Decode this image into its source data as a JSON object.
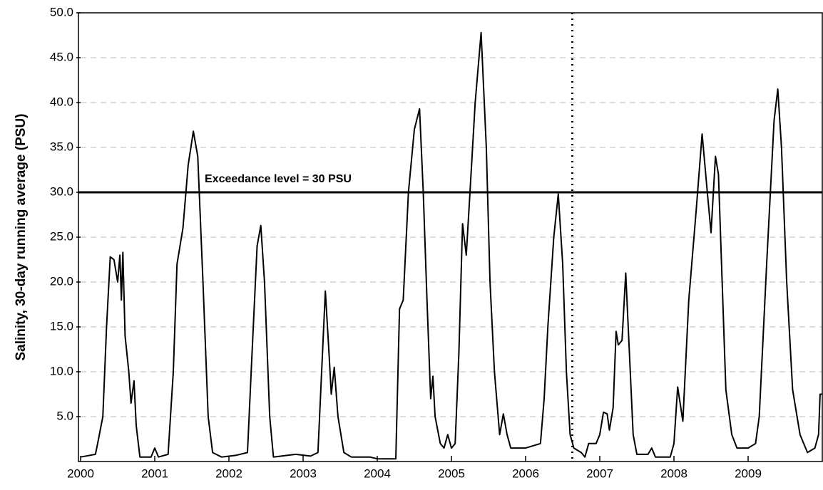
{
  "chart_data": {
    "type": "line",
    "y_label": "Salinity, 30-day running average (PSU)",
    "annotation": "Exceedance level = 30 PSU",
    "hline": 30,
    "vline": 2006.63,
    "color": "#000000",
    "grid": true,
    "xlim": [
      2000,
      2010
    ],
    "xticks": [
      2000,
      2001,
      2002,
      2003,
      2004,
      2005,
      2006,
      2007,
      2008,
      2009
    ],
    "ylim": [
      0,
      50
    ],
    "yticks": [
      {
        "value": 5,
        "label": "5.0"
      },
      {
        "value": 10,
        "label": "10.0"
      },
      {
        "value": 15,
        "label": "15.0"
      },
      {
        "value": 20,
        "label": "20.0"
      },
      {
        "value": 25,
        "label": "25.0"
      },
      {
        "value": 30,
        "label": "30.0"
      },
      {
        "value": 35,
        "label": "35.0"
      },
      {
        "value": 40,
        "label": "40.0"
      },
      {
        "value": 45,
        "label": "45.0"
      },
      {
        "value": 50,
        "label": "50.0"
      }
    ],
    "x": [
      2000.0,
      2000.2,
      2000.23,
      2000.3,
      2000.35,
      2000.4,
      2000.45,
      2000.5,
      2000.53,
      2000.55,
      2000.57,
      2000.6,
      2000.65,
      2000.68,
      2000.72,
      2000.75,
      2000.8,
      2000.95,
      2001.0,
      2001.05,
      2001.18,
      2001.25,
      2001.3,
      2001.38,
      2001.45,
      2001.52,
      2001.58,
      2001.65,
      2001.72,
      2001.78,
      2001.9,
      2002.1,
      2002.25,
      2002.3,
      2002.38,
      2002.43,
      2002.48,
      2002.55,
      2002.6,
      2002.9,
      2003.1,
      2003.2,
      2003.25,
      2003.3,
      2003.35,
      2003.38,
      2003.42,
      2003.47,
      2003.55,
      2003.65,
      2003.9,
      2004.0,
      2004.25,
      2004.3,
      2004.35,
      2004.42,
      2004.5,
      2004.57,
      2004.62,
      2004.67,
      2004.72,
      2004.75,
      2004.78,
      2004.85,
      2004.9,
      2004.95,
      2005.0,
      2005.05,
      2005.1,
      2005.15,
      2005.2,
      2005.25,
      2005.32,
      2005.4,
      2005.47,
      2005.52,
      2005.58,
      2005.65,
      2005.7,
      2005.75,
      2005.8,
      2006.0,
      2006.2,
      2006.25,
      2006.3,
      2006.38,
      2006.44,
      2006.5,
      2006.55,
      2006.6,
      2006.65,
      2006.75,
      2006.8,
      2006.85,
      2006.95,
      2007.0,
      2007.05,
      2007.1,
      2007.13,
      2007.18,
      2007.22,
      2007.25,
      2007.3,
      2007.35,
      2007.4,
      2007.45,
      2007.5,
      2007.65,
      2007.7,
      2007.75,
      2007.95,
      2008.0,
      2008.05,
      2008.12,
      2008.2,
      2008.3,
      2008.38,
      2008.45,
      2008.5,
      2008.56,
      2008.6,
      2008.65,
      2008.7,
      2008.78,
      2008.85,
      2009.0,
      2009.1,
      2009.15,
      2009.25,
      2009.35,
      2009.4,
      2009.45,
      2009.52,
      2009.6,
      2009.7,
      2009.8,
      2009.9,
      2009.95,
      2009.97,
      2010.0
    ],
    "values": [
      0.5,
      0.8,
      2,
      5,
      15,
      22.8,
      22.5,
      20,
      23,
      18,
      23.3,
      14,
      10,
      6.5,
      9,
      4,
      0.5,
      0.5,
      1.5,
      0.5,
      0.8,
      10,
      22,
      26,
      33,
      36.8,
      34,
      20,
      5,
      1,
      0.5,
      0.7,
      1,
      10,
      24,
      26.3,
      20,
      5,
      0.5,
      0.8,
      0.6,
      1,
      10,
      19,
      12,
      7.5,
      10.5,
      5,
      1,
      0.5,
      0.5,
      0.3,
      0.3,
      17,
      18,
      30,
      37,
      39.3,
      30,
      18,
      7,
      9.5,
      5,
      2,
      1.5,
      3,
      1.5,
      2,
      12,
      26.5,
      23,
      30,
      40,
      47.8,
      35,
      20,
      10,
      3,
      5.3,
      3,
      1.5,
      1.5,
      2,
      7,
      15,
      25,
      29.8,
      22,
      10,
      3,
      1.5,
      1,
      0.5,
      2,
      2,
      3,
      5.5,
      5.3,
      3.5,
      6,
      14.5,
      13,
      13.5,
      21,
      12,
      3,
      0.8,
      0.8,
      1.5,
      0.5,
      0.5,
      2,
      8.3,
      4.5,
      18,
      28,
      36.5,
      30,
      25.5,
      34,
      32,
      20,
      8,
      3,
      1.5,
      1.5,
      2,
      5,
      22,
      38,
      41.5,
      35,
      20,
      8,
      3,
      1,
      1.5,
      3,
      7.5,
      7.5
    ]
  }
}
